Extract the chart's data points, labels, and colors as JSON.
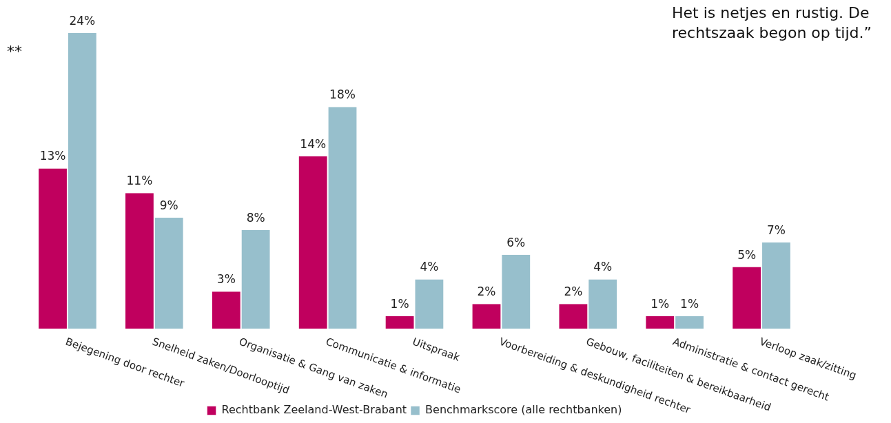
{
  "chart_data": {
    "type": "bar",
    "categories": [
      "Bejegening door rechter",
      "Snelheid zaken/Doorlooptijd",
      "Organisatie & Gang van zaken",
      "Communicatie & informatie",
      "Uitspraak",
      "Voorbereiding & deskundigheid rechter",
      "Gebouw, faciliteiten & bereikbaarheid",
      "Administratie & contact gerecht",
      "Verloop zaak/zitting"
    ],
    "series": [
      {
        "name": "Rechtbank Zeeland-West-Brabant",
        "color": "#c0005e",
        "values": [
          13,
          11,
          3,
          14,
          1,
          2,
          2,
          1,
          5
        ],
        "value_labels": [
          "13%",
          "11%",
          "3%",
          "14%",
          "1%",
          "2%",
          "2%",
          "1%",
          "5%"
        ]
      },
      {
        "name": "Benchmarkscore (alle rechtbanken)",
        "color": "#97bfcc",
        "values": [
          24,
          9,
          8,
          18,
          4,
          6,
          4,
          1,
          7
        ],
        "value_labels": [
          "24%",
          "9%",
          "8%",
          "18%",
          "4%",
          "6%",
          "4%",
          "1%",
          "7%"
        ]
      }
    ],
    "legend": "bottom",
    "grid": false,
    "annotations": [
      "Het is netjes en rustig. De rechtszaak begon op tijd.”",
      "**"
    ]
  }
}
